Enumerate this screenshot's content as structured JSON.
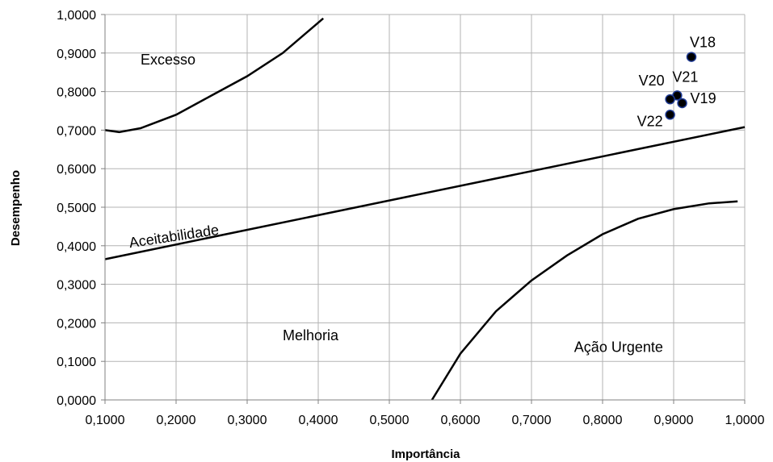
{
  "chart_data": {
    "type": "scatter",
    "title": "",
    "xlabel": "Importância",
    "ylabel": "Desempenho",
    "xlim": [
      0.1,
      1.0
    ],
    "ylim": [
      0.0,
      1.0
    ],
    "grid": true,
    "x_ticks": [
      "0,1000",
      "0,2000",
      "0,3000",
      "0,4000",
      "0,5000",
      "0,6000",
      "0,7000",
      "0,8000",
      "0,9000",
      "1,0000"
    ],
    "y_ticks": [
      "0,0000",
      "0,1000",
      "0,2000",
      "0,3000",
      "0,4000",
      "0,5000",
      "0,6000",
      "0,7000",
      "0,8000",
      "0,9000",
      "1,0000"
    ],
    "points": [
      {
        "label": "V18",
        "x": 0.925,
        "y": 0.89
      },
      {
        "label": "V21",
        "x": 0.905,
        "y": 0.79
      },
      {
        "label": "V20",
        "x": 0.895,
        "y": 0.78
      },
      {
        "label": "V19",
        "x": 0.912,
        "y": 0.77
      },
      {
        "label": "V22",
        "x": 0.895,
        "y": 0.74
      }
    ],
    "curves": [
      {
        "name": "Excesso-curve",
        "points": [
          [
            0.1,
            0.7
          ],
          [
            0.12,
            0.695
          ],
          [
            0.15,
            0.705
          ],
          [
            0.2,
            0.74
          ],
          [
            0.25,
            0.79
          ],
          [
            0.3,
            0.84
          ],
          [
            0.35,
            0.9
          ],
          [
            0.407,
            0.99
          ]
        ]
      },
      {
        "name": "Aceitabilidade-line",
        "points": [
          [
            0.1,
            0.365
          ],
          [
            1.0,
            0.708
          ]
        ]
      },
      {
        "name": "Acao-Urgente-curve",
        "points": [
          [
            0.56,
            0.0
          ],
          [
            0.6,
            0.12
          ],
          [
            0.65,
            0.23
          ],
          [
            0.7,
            0.31
          ],
          [
            0.75,
            0.375
          ],
          [
            0.8,
            0.43
          ],
          [
            0.85,
            0.47
          ],
          [
            0.9,
            0.495
          ],
          [
            0.95,
            0.51
          ],
          [
            0.99,
            0.515
          ]
        ]
      }
    ],
    "annotations": [
      {
        "text": "Excesso",
        "x": 0.15,
        "y": 0.87
      },
      {
        "text": "Aceitabilidade",
        "x": 0.135,
        "y": 0.395,
        "rotate": -8.5
      },
      {
        "text": "Melhoria",
        "x": 0.35,
        "y": 0.155
      },
      {
        "text": "Ação Urgente",
        "x": 0.76,
        "y": 0.125
      }
    ]
  }
}
